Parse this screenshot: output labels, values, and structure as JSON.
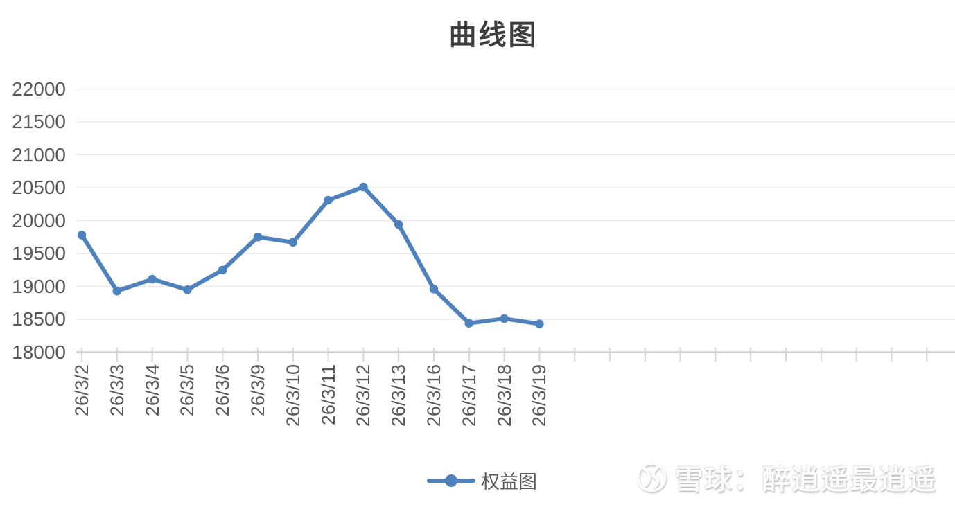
{
  "title": "曲线图",
  "legend": {
    "label": "权益图"
  },
  "watermark": {
    "logo": "xueqiu-logo",
    "text": "雪球：醉逍遥最逍遥"
  },
  "colors": {
    "series_line": "#4f81bd",
    "grid_line": "#e7e7e7",
    "axis_line": "#d2d2d2",
    "tick_mark": "#d9d9d9",
    "axis_text": "#595959",
    "title_text": "#3d3d3d",
    "watermark_text": "#fbfbfb"
  },
  "chart_data": {
    "type": "line",
    "title": "曲线图",
    "xlabel": "",
    "ylabel": "",
    "categories": [
      "26/3/2",
      "26/3/3",
      "26/3/4",
      "26/3/5",
      "26/3/6",
      "26/3/9",
      "26/3/10",
      "26/3/11",
      "26/3/12",
      "26/3/13",
      "26/3/16",
      "26/3/17",
      "26/3/18",
      "26/3/19"
    ],
    "series": [
      {
        "name": "权益图",
        "color": "#4f81bd",
        "marker": "circle",
        "values": [
          19780,
          18930,
          19110,
          18950,
          19250,
          19750,
          19670,
          20310,
          20510,
          19940,
          18960,
          18440,
          18510,
          18430
        ]
      }
    ],
    "ylim": [
      18000,
      22000
    ],
    "ytick_step": 500,
    "ytick_labels": [
      "18000",
      "18500",
      "19000",
      "19500",
      "20000",
      "20500",
      "21000",
      "21500",
      "22000"
    ],
    "grid": true,
    "legend_position": "bottom",
    "x_axis_total_ticks": 25,
    "x_tick_label_rotation": -90
  }
}
